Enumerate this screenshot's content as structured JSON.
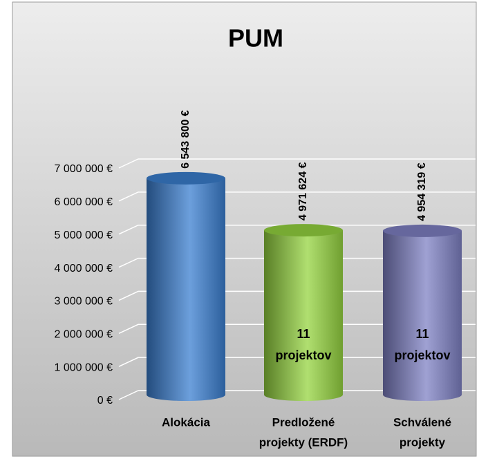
{
  "chart_data": {
    "type": "cylinder_bar",
    "title": "PUM",
    "categories": [
      [
        "Alokácia"
      ],
      [
        "Predložené",
        "projekty (ERDF)"
      ],
      [
        "Schválené",
        "projekty"
      ]
    ],
    "values": [
      6543800,
      4971624,
      4954319
    ],
    "value_labels": [
      "6 543 800 €",
      "4 971 624 €",
      "4 954 319 €"
    ],
    "bar_annotations": [
      null,
      [
        "11",
        "projektov"
      ],
      [
        "11",
        "projektov"
      ]
    ],
    "colors": [
      "#3b7fd0",
      "#95d440",
      "#7f81c4"
    ],
    "ylim": [
      0,
      7000000
    ],
    "yticks": [
      {
        "value": 0,
        "label": "0 €"
      },
      {
        "value": 1000000,
        "label": "1 000 000 €"
      },
      {
        "value": 2000000,
        "label": "2 000 000 €"
      },
      {
        "value": 3000000,
        "label": "3 000 000 €"
      },
      {
        "value": 4000000,
        "label": "4 000 000 €"
      },
      {
        "value": 5000000,
        "label": "5 000 000 €"
      },
      {
        "value": 6000000,
        "label": "6 000 000 €"
      },
      {
        "value": 7000000,
        "label": "7 000 000 €"
      }
    ],
    "grid": true
  }
}
